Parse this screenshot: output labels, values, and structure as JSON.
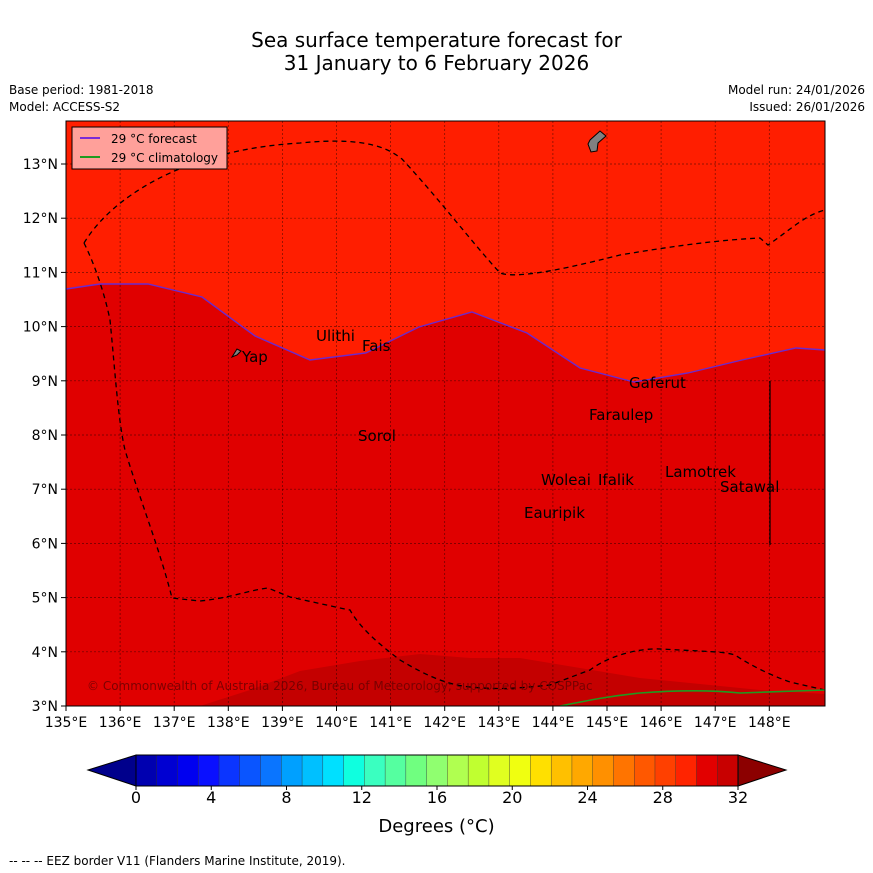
{
  "title_line1": "Sea surface temperature forecast for",
  "title_line2": "31 January to 6 February 2026",
  "base_period": "Base period: 1981-2018",
  "model": "Model: ACCESS-S2",
  "model_run": "Model run: 24/01/2026",
  "issued": "Issued: 26/01/2026",
  "legend": {
    "forecast": "29 °C  forecast",
    "climatology": "29 °C  climatology",
    "forecast_color": "#7a2ad6",
    "climatology_color": "#1f9a1f"
  },
  "colors": {
    "warm_north": "#ff1e00",
    "mid": "#e00000",
    "south_dark": "#c40000"
  },
  "x_ticks": [
    "135°E",
    "136°E",
    "137°E",
    "138°E",
    "139°E",
    "140°E",
    "141°E",
    "142°E",
    "143°E",
    "144°E",
    "145°E",
    "146°E",
    "147°E",
    "148°E"
  ],
  "y_ticks": [
    "13°N",
    "12°N",
    "11°N",
    "10°N",
    "9°N",
    "8°N",
    "7°N",
    "6°N",
    "5°N",
    "4°N",
    "3°N"
  ],
  "places": [
    "Ulithi",
    "Fais",
    "Yap",
    "Gaferut",
    "Faraulep",
    "Sorol",
    "Lamotrek",
    "Woleai",
    "Ifalik",
    "Satawal",
    "Eauripik"
  ],
  "copyright": "© Commonwealth of Australia 2026, Bureau of Meteorology; supported by COSPPac",
  "colorbar": {
    "tick_labels": [
      "0",
      "4",
      "8",
      "12",
      "16",
      "20",
      "24",
      "28",
      "32"
    ],
    "label": "Degrees (°C)",
    "colors": [
      "#00008c",
      "#0000b0",
      "#0000d2",
      "#0000f0",
      "#0a10ff",
      "#0b35ff",
      "#0a55ff",
      "#0a75ff",
      "#00a0ff",
      "#00c0ff",
      "#00e0ff",
      "#0fffdf",
      "#3affc0",
      "#55ffa0",
      "#70ff80",
      "#90ff70",
      "#b0ff50",
      "#c0ff30",
      "#e0ff20",
      "#f0ff10",
      "#ffe000",
      "#ffc000",
      "#ffa800",
      "#ff9000",
      "#ff7400",
      "#ff5800",
      "#ff4000",
      "#ff2400",
      "#e20000",
      "#c80000",
      "#8c0000"
    ]
  },
  "eez_note": "--  --  -- EEZ border V11 (Flanders Marine Institute, 2019)."
}
